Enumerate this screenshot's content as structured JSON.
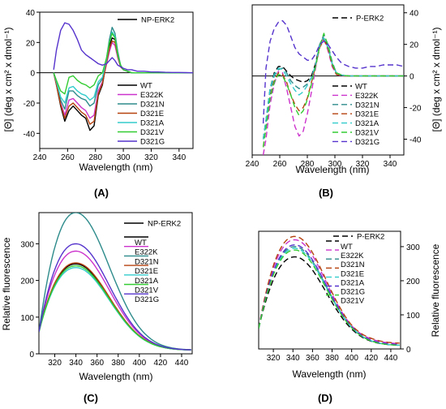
{
  "colors": {
    "NP-ERK2": "#000000",
    "P-ERK2": "#000000",
    "WT": "#000000",
    "E322K": "#cc33cc",
    "D321N": "#2e8b8b",
    "D321E": "#b5420f",
    "D321A": "#33cccc",
    "D321V": "#33cc33",
    "D321G": "#5533cc"
  },
  "chart_data": [
    {
      "panel_label": "(A)",
      "type": "line",
      "xlabel": "Wavelength (nm)",
      "ylabel": "",
      "xlim": [
        240,
        350
      ],
      "ylim": [
        -50,
        40
      ],
      "x_ticks": [
        240,
        260,
        280,
        300,
        320,
        340
      ],
      "y_ticks": [],
      "y_axis_side": "left",
      "legend": {
        "header": "NP-ERK2",
        "header_dash": "solid",
        "entries": [
          "WT",
          "E322K",
          "D321N",
          "D321E",
          "D321A",
          "D321V",
          "D321G"
        ],
        "dash": "solid",
        "placement": "top-right"
      },
      "x": [
        250,
        252,
        255,
        258,
        261,
        264,
        267,
        270,
        273,
        276,
        279,
        282,
        285,
        288,
        290,
        292,
        294,
        296,
        298,
        300,
        303,
        306,
        310,
        315,
        320,
        325,
        330,
        335,
        340,
        345,
        350
      ],
      "series": [
        {
          "name": "WT",
          "values": [
            0,
            -8,
            -22,
            -32,
            -25,
            -22,
            -25,
            -28,
            -30,
            -38,
            -35,
            -15,
            -8,
            8,
            18,
            23,
            22,
            12,
            4,
            2,
            1,
            0,
            0,
            0,
            0,
            0,
            0,
            0,
            0,
            0,
            0
          ]
        },
        {
          "name": "E322K",
          "values": [
            0,
            -8,
            -20,
            -28,
            -18,
            -17,
            -20,
            -23,
            -25,
            -30,
            -28,
            -12,
            -6,
            6,
            14,
            20,
            18,
            10,
            4,
            2,
            1,
            0,
            0,
            0,
            0,
            0,
            0,
            0,
            0,
            0,
            0
          ]
        },
        {
          "name": "D321N",
          "values": [
            0,
            -7,
            -18,
            -24,
            -12,
            -12,
            -15,
            -17,
            -18,
            -22,
            -20,
            -8,
            -4,
            10,
            22,
            30,
            26,
            14,
            5,
            2,
            1,
            0,
            0,
            0,
            0,
            0,
            0,
            0,
            0,
            0,
            0
          ]
        },
        {
          "name": "D321E",
          "values": [
            0,
            -8,
            -21,
            -30,
            -22,
            -20,
            -23,
            -26,
            -28,
            -34,
            -32,
            -14,
            -7,
            7,
            16,
            21,
            20,
            11,
            4,
            2,
            1,
            0,
            0,
            0,
            0,
            0,
            0,
            0,
            0,
            0,
            0
          ]
        },
        {
          "name": "D321A",
          "values": [
            0,
            -6,
            -16,
            -20,
            -10,
            -9,
            -12,
            -14,
            -15,
            -18,
            -16,
            -6,
            -3,
            9,
            20,
            27,
            24,
            12,
            5,
            2,
            1,
            0,
            0,
            0,
            0,
            0,
            0,
            0,
            0,
            0,
            0
          ]
        },
        {
          "name": "D321V",
          "values": [
            0,
            -5,
            -12,
            -14,
            -3,
            -2,
            -5,
            -7,
            -8,
            -10,
            -8,
            -2,
            0,
            10,
            20,
            26,
            23,
            12,
            5,
            2,
            1,
            0,
            0,
            0,
            0,
            0,
            0,
            0,
            0,
            0,
            0
          ]
        },
        {
          "name": "D321G",
          "values": [
            2,
            15,
            28,
            33,
            32,
            28,
            22,
            15,
            12,
            10,
            8,
            6,
            5,
            6,
            8,
            10,
            8,
            5,
            4,
            3,
            2,
            2,
            1,
            1,
            0.5,
            0.5,
            0.3,
            0.2,
            0.2,
            0.1,
            0
          ]
        }
      ]
    },
    {
      "panel_label": "(B)",
      "type": "line",
      "xlabel": "Wavelength (nm)",
      "ylabel": "[Θ] (deg x cm² x dmol⁻¹)",
      "xlim": [
        240,
        350
      ],
      "ylim": [
        -50,
        45
      ],
      "x_ticks": [
        240,
        260,
        280,
        300,
        320,
        340
      ],
      "y_ticks": [
        -40,
        -20,
        0,
        20,
        40
      ],
      "y_axis_side": "right",
      "legend": {
        "header": "P-ERK2",
        "header_dash": "dashed",
        "entries": [
          "WT",
          "E322K",
          "D321N",
          "D321E",
          "D321A",
          "D321V",
          "D321G"
        ],
        "dash": "dashed",
        "placement": "right"
      },
      "x": [
        248,
        250,
        253,
        256,
        259,
        262,
        265,
        268,
        271,
        274,
        277,
        280,
        283,
        286,
        289,
        292,
        295,
        298,
        301,
        305,
        310,
        315,
        320,
        325,
        330,
        335,
        340,
        345,
        350
      ],
      "series": [
        {
          "name": "WT",
          "values": [
            -40,
            -28,
            -8,
            2,
            6,
            6,
            3,
            0,
            -2,
            -3,
            -4,
            -3,
            0,
            8,
            20,
            24,
            18,
            8,
            2,
            0.5,
            0,
            0,
            0,
            0,
            0,
            0,
            0,
            0,
            0
          ]
        },
        {
          "name": "E322K",
          "values": [
            -50,
            -40,
            -18,
            -5,
            3,
            2,
            -8,
            -20,
            -32,
            -38,
            -35,
            -24,
            -10,
            5,
            20,
            24,
            16,
            6,
            1,
            0,
            0,
            0,
            0,
            0,
            0,
            0,
            0,
            0,
            0
          ]
        },
        {
          "name": "D321N",
          "values": [
            -40,
            -30,
            -10,
            0,
            4,
            5,
            2,
            -3,
            -6,
            -8,
            -7,
            -5,
            -1,
            7,
            20,
            26,
            20,
            9,
            2,
            0.5,
            0,
            0,
            0,
            0,
            0,
            0,
            0,
            0,
            0
          ]
        },
        {
          "name": "D321E",
          "values": [
            -45,
            -33,
            -13,
            -3,
            2,
            1,
            -4,
            -12,
            -18,
            -22,
            -20,
            -14,
            -4,
            6,
            18,
            23,
            17,
            7,
            1,
            0,
            0,
            0,
            0,
            0,
            0,
            0,
            0,
            0,
            0
          ]
        },
        {
          "name": "D321A",
          "values": [
            -40,
            -28,
            -8,
            1,
            5,
            4,
            0,
            -5,
            -9,
            -12,
            -10,
            -6,
            -1,
            7,
            19,
            24,
            18,
            8,
            2,
            0.5,
            0,
            0,
            0,
            0,
            0,
            0,
            0,
            0,
            0
          ]
        },
        {
          "name": "D321V",
          "values": [
            -45,
            -33,
            -14,
            -4,
            1,
            0,
            -5,
            -12,
            -20,
            -25,
            -22,
            -15,
            -5,
            6,
            19,
            27,
            19,
            8,
            2,
            0.5,
            0,
            0,
            0,
            0,
            0,
            0,
            0,
            0,
            0
          ]
        },
        {
          "name": "D321G",
          "values": [
            -30,
            5,
            22,
            30,
            34,
            35,
            32,
            25,
            18,
            14,
            12,
            10,
            10,
            14,
            20,
            22,
            20,
            16,
            12,
            8,
            6,
            5,
            5,
            6,
            6,
            7,
            7,
            7,
            6
          ]
        }
      ]
    },
    {
      "panel_label": "(C)",
      "type": "line",
      "xlabel": "Wavelength (nm)",
      "ylabel": "Relative fluorescence",
      "xlim": [
        305,
        450
      ],
      "ylim": [
        0,
        385
      ],
      "x_ticks": [
        320,
        340,
        360,
        380,
        400,
        420,
        440
      ],
      "y_ticks": [
        0,
        100,
        200,
        300
      ],
      "y_axis_side": "left",
      "legend": {
        "header": "NP-ERK2",
        "header_dash": "solid",
        "entries": [
          "WT",
          "E322K",
          "D321N",
          "D321E",
          "D321A",
          "D321V",
          "D321G"
        ],
        "dash": "solid",
        "placement": "top-right"
      },
      "peak_wavelength": 340,
      "peaks": [
        {
          "name": "WT",
          "peak": 245,
          "lead": 0
        },
        {
          "name": "E322K",
          "peak": 280,
          "lead": 0
        },
        {
          "name": "D321N",
          "peak": 385,
          "lead": 0
        },
        {
          "name": "D321E",
          "peak": 248,
          "lead": 0
        },
        {
          "name": "D321A",
          "peak": 235,
          "lead": 0
        },
        {
          "name": "D321V",
          "peak": 240,
          "lead": 0
        },
        {
          "name": "D321G",
          "peak": 300,
          "lead": 0
        }
      ]
    },
    {
      "panel_label": "(D)",
      "type": "line",
      "xlabel": "Wavelength (nm)",
      "ylabel": "Relative fluorescence",
      "xlim": [
        305,
        450
      ],
      "ylim": [
        0,
        345
      ],
      "x_ticks": [
        320,
        340,
        360,
        380,
        400,
        420,
        440
      ],
      "y_ticks": [
        0,
        100,
        200,
        300
      ],
      "y_axis_side": "right",
      "legend": {
        "header": "P-ERK2",
        "header_dash": "dashed",
        "entries": [
          "WT",
          "E322K",
          "D321N",
          "D321E",
          "D321A",
          "D321G",
          "D321V"
        ],
        "dash": "dashed",
        "placement": "top-right"
      },
      "peak_wavelength": 342,
      "peaks": [
        {
          "name": "WT",
          "peak": 270,
          "lead": 0
        },
        {
          "name": "E322K",
          "peak": 320,
          "lead": 12
        },
        {
          "name": "D321N",
          "peak": 300,
          "lead": 0
        },
        {
          "name": "D321E",
          "peak": 330,
          "lead": 15
        },
        {
          "name": "D321A",
          "peak": 295,
          "lead": 0
        },
        {
          "name": "D321G",
          "peak": 305,
          "lead": 5
        },
        {
          "name": "D321V",
          "peak": 290,
          "lead": 0
        }
      ]
    }
  ]
}
